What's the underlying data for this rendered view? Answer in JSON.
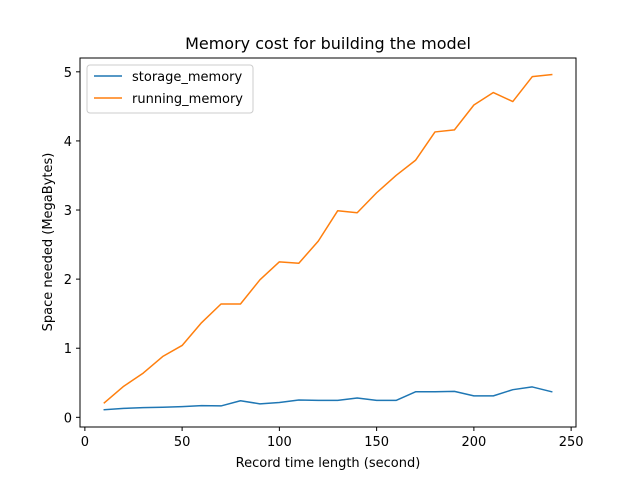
{
  "chart_data": {
    "type": "line",
    "title": "Memory cost for building the model",
    "xlabel": "Record time length (second)",
    "ylabel": "Space needed (MegaBytes)",
    "xlim": [
      -2.5,
      252.5
    ],
    "ylim": [
      -0.14,
      5.2
    ],
    "xticks": [
      0,
      50,
      100,
      150,
      200,
      250
    ],
    "yticks": [
      0,
      1,
      2,
      3,
      4,
      5
    ],
    "grid": false,
    "legend_position": "top-left",
    "x": [
      10,
      20,
      30,
      40,
      50,
      60,
      70,
      80,
      90,
      100,
      110,
      120,
      130,
      140,
      150,
      160,
      170,
      180,
      190,
      200,
      210,
      220,
      230,
      240
    ],
    "series": [
      {
        "name": "storage_memory",
        "color": "#1f77b4",
        "values": [
          0.11,
          0.13,
          0.14,
          0.145,
          0.155,
          0.17,
          0.165,
          0.24,
          0.195,
          0.215,
          0.25,
          0.245,
          0.245,
          0.28,
          0.245,
          0.245,
          0.37,
          0.37,
          0.375,
          0.31,
          0.31,
          0.4,
          0.44,
          0.37
        ]
      },
      {
        "name": "running_memory",
        "color": "#ff7f0e",
        "values": [
          0.21,
          0.45,
          0.64,
          0.88,
          1.04,
          1.37,
          1.64,
          1.64,
          1.99,
          2.25,
          2.23,
          2.55,
          2.99,
          2.96,
          3.25,
          3.5,
          3.72,
          4.13,
          4.16,
          4.52,
          4.7,
          4.57,
          4.93,
          4.96
        ]
      }
    ]
  }
}
